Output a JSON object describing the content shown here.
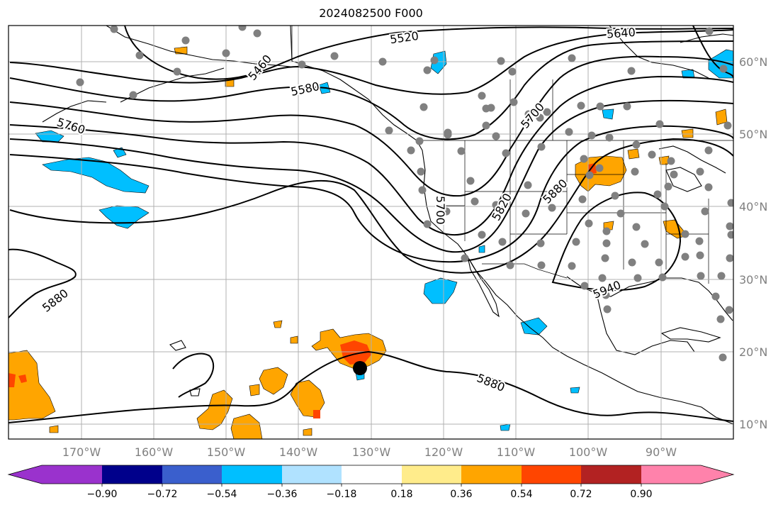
{
  "title": "2024082500 F000",
  "map": {
    "projection": "plate-carree",
    "lon_range": [
      -180,
      -80
    ],
    "lat_range": [
      8,
      65
    ],
    "grid": true,
    "lon_ticks": [
      "170°W",
      "160°W",
      "150°W",
      "140°W",
      "130°W",
      "120°W",
      "110°W",
      "100°W",
      "90°W"
    ],
    "lat_ticks": [
      "60°N",
      "50°N",
      "40°N",
      "30°N",
      "20°N",
      "10°N"
    ],
    "contour_labels": [
      "5520",
      "5640",
      "5460",
      "5580",
      "5760",
      "5700",
      "5700",
      "5820",
      "5880",
      "5880",
      "5940",
      "5880"
    ],
    "storm_center": "black-dot near 17.7N 132.2W",
    "station_marker_color": "#808080"
  },
  "colorbar": {
    "tick_labels": [
      "−0.90",
      "−0.72",
      "−0.54",
      "−0.36",
      "−0.18",
      "0.18",
      "0.36",
      "0.54",
      "0.72",
      "0.90"
    ],
    "colors": [
      "#9a32cd",
      "#00008b",
      "#3a5fcd",
      "#00bfff",
      "#b0e2ff",
      "#ffffff",
      "#ffec8b",
      "#ffa500",
      "#ff4500",
      "#b22222",
      "#ff82ab"
    ],
    "extend": "both"
  }
}
